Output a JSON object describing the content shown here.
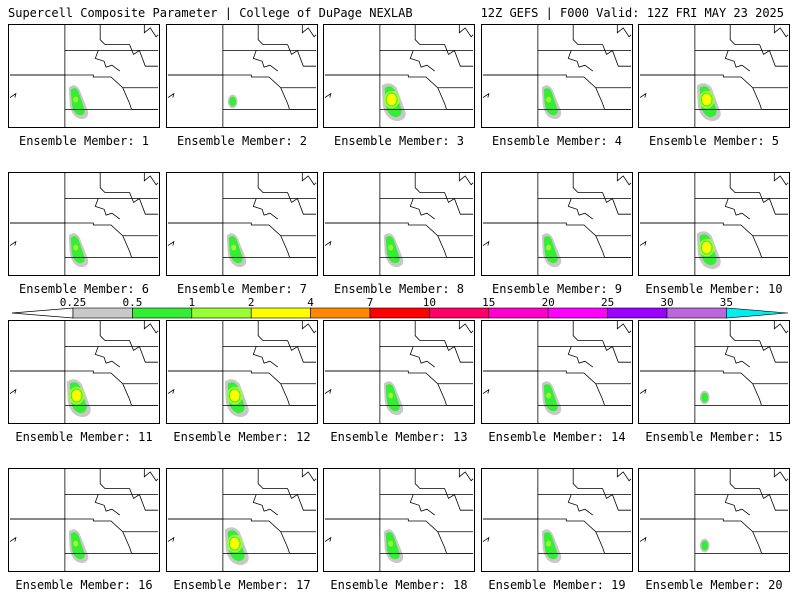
{
  "header": {
    "left": "Supercell Composite Parameter | College of DuPage NEXLAB",
    "right": "12Z GEFS | F000 Valid: 12Z FRI MAY 23 2025"
  },
  "legend": {
    "levels": [
      "0.25",
      "0.5",
      "1",
      "2",
      "4",
      "7",
      "10",
      "15",
      "20",
      "25",
      "30",
      "35"
    ],
    "colors": [
      "#c8c8c8",
      "#33ee33",
      "#99ff33",
      "#ffff00",
      "#ff8800",
      "#ff0000",
      "#ff0066",
      "#ff00cc",
      "#ff00ff",
      "#9900ff",
      "#bb66dd",
      "#00eeee"
    ]
  },
  "members": [
    {
      "label": "Ensemble Member: 1",
      "intensity": "medium"
    },
    {
      "label": "Ensemble Member: 2",
      "intensity": "weak"
    },
    {
      "label": "Ensemble Member: 3",
      "intensity": "strong"
    },
    {
      "label": "Ensemble Member: 4",
      "intensity": "medium"
    },
    {
      "label": "Ensemble Member: 5",
      "intensity": "strong"
    },
    {
      "label": "Ensemble Member: 6",
      "intensity": "medium"
    },
    {
      "label": "Ensemble Member: 7",
      "intensity": "medium"
    },
    {
      "label": "Ensemble Member: 8",
      "intensity": "medium"
    },
    {
      "label": "Ensemble Member: 9",
      "intensity": "medium"
    },
    {
      "label": "Ensemble Member: 10",
      "intensity": "strong"
    },
    {
      "label": "Ensemble Member: 11",
      "intensity": "strong"
    },
    {
      "label": "Ensemble Member: 12",
      "intensity": "strong"
    },
    {
      "label": "Ensemble Member: 13",
      "intensity": "medium"
    },
    {
      "label": "Ensemble Member: 14",
      "intensity": "medium"
    },
    {
      "label": "Ensemble Member: 15",
      "intensity": "weak"
    },
    {
      "label": "Ensemble Member: 16",
      "intensity": "medium"
    },
    {
      "label": "Ensemble Member: 17",
      "intensity": "strong"
    },
    {
      "label": "Ensemble Member: 18",
      "intensity": "medium"
    },
    {
      "label": "Ensemble Member: 19",
      "intensity": "medium"
    },
    {
      "label": "Ensemble Member: 20",
      "intensity": "weak"
    }
  ]
}
